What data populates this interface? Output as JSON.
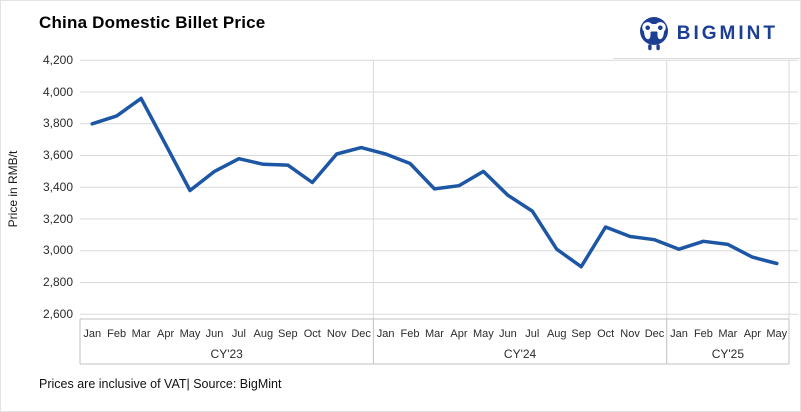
{
  "page": {
    "footer": "Prices are inclusive of VAT| Source: BigMint"
  },
  "logo": {
    "text": "BIGMINT",
    "color": "#1c3e94"
  },
  "chart_data": {
    "type": "line",
    "title": "China Domestic Billet Price",
    "xlabel": "",
    "ylabel": "Price in RMB/t",
    "ylim": [
      2600,
      4200
    ],
    "yticks": [
      2600,
      2800,
      3000,
      3200,
      3400,
      3600,
      3800,
      4000,
      4200
    ],
    "grid": true,
    "legend_position": "none",
    "categories": [
      "Jan",
      "Feb",
      "Mar",
      "Apr",
      "May",
      "Jun",
      "Jul",
      "Aug",
      "Sep",
      "Oct",
      "Nov",
      "Dec",
      "Jan",
      "Feb",
      "Mar",
      "Apr",
      "May",
      "Jun",
      "Jul",
      "Aug",
      "Sep",
      "Oct",
      "Nov",
      "Dec",
      "Jan",
      "Feb",
      "Mar",
      "Apr",
      "May"
    ],
    "groups": [
      {
        "label": "CY'23",
        "count": 12
      },
      {
        "label": "CY'24",
        "count": 12
      },
      {
        "label": "CY'25",
        "count": 5
      }
    ],
    "series": [
      {
        "name": "China Domestic Billet Price",
        "color": "#1d56a5",
        "values": [
          3800,
          3850,
          3960,
          3670,
          3380,
          3500,
          3580,
          3545,
          3540,
          3430,
          3610,
          3650,
          3610,
          3550,
          3390,
          3410,
          3500,
          3350,
          3250,
          3010,
          2900,
          3150,
          3090,
          3070,
          3010,
          3060,
          3040,
          2960,
          2920
        ]
      }
    ]
  }
}
